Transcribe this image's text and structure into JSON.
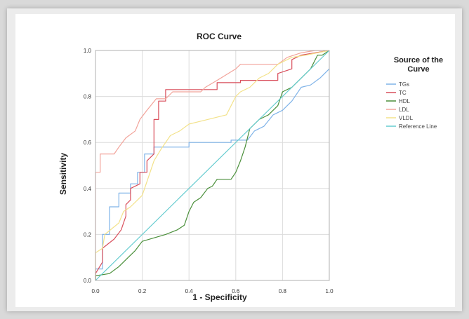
{
  "chart_data": {
    "type": "line",
    "title": "ROC Curve",
    "xlabel": "1 - Specificity",
    "ylabel": "Sensitivity",
    "xlim": [
      0,
      1
    ],
    "ylim": [
      0,
      1
    ],
    "grid": true,
    "legend_title": "Source of the Curve",
    "legend_placement": "right",
    "x_ticks": [
      "0.0",
      "0.2",
      "0.4",
      "0.6",
      "0.8",
      "1.0"
    ],
    "y_ticks": [
      "0.0",
      "0.2",
      "0.4",
      "0.6",
      "0.8",
      "1.0"
    ],
    "series": [
      {
        "name": "TGs",
        "color": "#7fb3e8",
        "points": [
          [
            0,
            0
          ],
          [
            0,
            0.05
          ],
          [
            0.03,
            0.05
          ],
          [
            0.03,
            0.2
          ],
          [
            0.06,
            0.2
          ],
          [
            0.06,
            0.32
          ],
          [
            0.1,
            0.32
          ],
          [
            0.1,
            0.38
          ],
          [
            0.15,
            0.38
          ],
          [
            0.15,
            0.42
          ],
          [
            0.18,
            0.42
          ],
          [
            0.18,
            0.47
          ],
          [
            0.21,
            0.47
          ],
          [
            0.21,
            0.55
          ],
          [
            0.25,
            0.55
          ],
          [
            0.25,
            0.58
          ],
          [
            0.4,
            0.58
          ],
          [
            0.4,
            0.6
          ],
          [
            0.58,
            0.6
          ],
          [
            0.58,
            0.61
          ],
          [
            0.65,
            0.61
          ],
          [
            0.68,
            0.65
          ],
          [
            0.72,
            0.67
          ],
          [
            0.76,
            0.72
          ],
          [
            0.8,
            0.74
          ],
          [
            0.84,
            0.78
          ],
          [
            0.88,
            0.84
          ],
          [
            0.92,
            0.85
          ],
          [
            0.96,
            0.88
          ],
          [
            1.0,
            0.92
          ]
        ]
      },
      {
        "name": "TC",
        "color": "#d94f5c",
        "points": [
          [
            0,
            0
          ],
          [
            0,
            0.03
          ],
          [
            0.03,
            0.08
          ],
          [
            0.03,
            0.14
          ],
          [
            0.08,
            0.18
          ],
          [
            0.11,
            0.22
          ],
          [
            0.13,
            0.28
          ],
          [
            0.13,
            0.33
          ],
          [
            0.15,
            0.35
          ],
          [
            0.15,
            0.4
          ],
          [
            0.19,
            0.42
          ],
          [
            0.19,
            0.47
          ],
          [
            0.22,
            0.47
          ],
          [
            0.22,
            0.52
          ],
          [
            0.25,
            0.55
          ],
          [
            0.25,
            0.7
          ],
          [
            0.27,
            0.7
          ],
          [
            0.27,
            0.78
          ],
          [
            0.3,
            0.78
          ],
          [
            0.3,
            0.83
          ],
          [
            0.38,
            0.83
          ],
          [
            0.52,
            0.83
          ],
          [
            0.52,
            0.86
          ],
          [
            0.62,
            0.86
          ],
          [
            0.62,
            0.87
          ],
          [
            0.78,
            0.87
          ],
          [
            0.78,
            0.9
          ],
          [
            0.84,
            0.92
          ],
          [
            0.84,
            0.96
          ],
          [
            0.88,
            0.98
          ],
          [
            1.0,
            1.0
          ]
        ]
      },
      {
        "name": "HDL",
        "color": "#4a8f3a",
        "points": [
          [
            0,
            0
          ],
          [
            0,
            0.02
          ],
          [
            0.06,
            0.03
          ],
          [
            0.1,
            0.06
          ],
          [
            0.14,
            0.1
          ],
          [
            0.17,
            0.13
          ],
          [
            0.2,
            0.17
          ],
          [
            0.3,
            0.2
          ],
          [
            0.35,
            0.22
          ],
          [
            0.38,
            0.24
          ],
          [
            0.4,
            0.3
          ],
          [
            0.42,
            0.34
          ],
          [
            0.45,
            0.36
          ],
          [
            0.48,
            0.4
          ],
          [
            0.5,
            0.41
          ],
          [
            0.52,
            0.44
          ],
          [
            0.55,
            0.44
          ],
          [
            0.58,
            0.44
          ],
          [
            0.6,
            0.47
          ],
          [
            0.62,
            0.52
          ],
          [
            0.64,
            0.58
          ],
          [
            0.66,
            0.66
          ],
          [
            0.68,
            0.68
          ],
          [
            0.7,
            0.7
          ],
          [
            0.74,
            0.72
          ],
          [
            0.78,
            0.76
          ],
          [
            0.8,
            0.82
          ],
          [
            0.84,
            0.84
          ],
          [
            0.88,
            0.88
          ],
          [
            0.92,
            0.92
          ],
          [
            0.95,
            0.98
          ],
          [
            0.97,
            0.98
          ],
          [
            1.0,
            1.0
          ]
        ]
      },
      {
        "name": "LDL",
        "color": "#f2a39a",
        "points": [
          [
            0,
            0
          ],
          [
            0,
            0.47
          ],
          [
            0.02,
            0.47
          ],
          [
            0.02,
            0.55
          ],
          [
            0.08,
            0.55
          ],
          [
            0.1,
            0.58
          ],
          [
            0.13,
            0.62
          ],
          [
            0.17,
            0.65
          ],
          [
            0.19,
            0.7
          ],
          [
            0.22,
            0.74
          ],
          [
            0.26,
            0.79
          ],
          [
            0.3,
            0.79
          ],
          [
            0.33,
            0.82
          ],
          [
            0.45,
            0.82
          ],
          [
            0.47,
            0.84
          ],
          [
            0.52,
            0.87
          ],
          [
            0.6,
            0.92
          ],
          [
            0.62,
            0.94
          ],
          [
            0.7,
            0.94
          ],
          [
            0.78,
            0.94
          ],
          [
            0.82,
            0.97
          ],
          [
            0.88,
            0.99
          ],
          [
            0.94,
            1.0
          ],
          [
            1.0,
            1.0
          ]
        ]
      },
      {
        "name": "VLDL",
        "color": "#f3e28a",
        "points": [
          [
            0,
            0
          ],
          [
            0,
            0.12
          ],
          [
            0.03,
            0.14
          ],
          [
            0.04,
            0.2
          ],
          [
            0.1,
            0.25
          ],
          [
            0.12,
            0.3
          ],
          [
            0.15,
            0.32
          ],
          [
            0.18,
            0.35
          ],
          [
            0.2,
            0.37
          ],
          [
            0.22,
            0.43
          ],
          [
            0.25,
            0.52
          ],
          [
            0.28,
            0.57
          ],
          [
            0.3,
            0.6
          ],
          [
            0.32,
            0.63
          ],
          [
            0.36,
            0.65
          ],
          [
            0.4,
            0.68
          ],
          [
            0.44,
            0.69
          ],
          [
            0.48,
            0.7
          ],
          [
            0.56,
            0.72
          ],
          [
            0.6,
            0.8
          ],
          [
            0.62,
            0.82
          ],
          [
            0.66,
            0.84
          ],
          [
            0.7,
            0.88
          ],
          [
            0.74,
            0.9
          ],
          [
            0.78,
            0.94
          ],
          [
            0.84,
            0.97
          ],
          [
            0.9,
            0.98
          ],
          [
            1.0,
            1.0
          ]
        ]
      },
      {
        "name": "Reference Line",
        "color": "#66ccd0",
        "points": [
          [
            0,
            0
          ],
          [
            1,
            1
          ]
        ]
      }
    ]
  }
}
